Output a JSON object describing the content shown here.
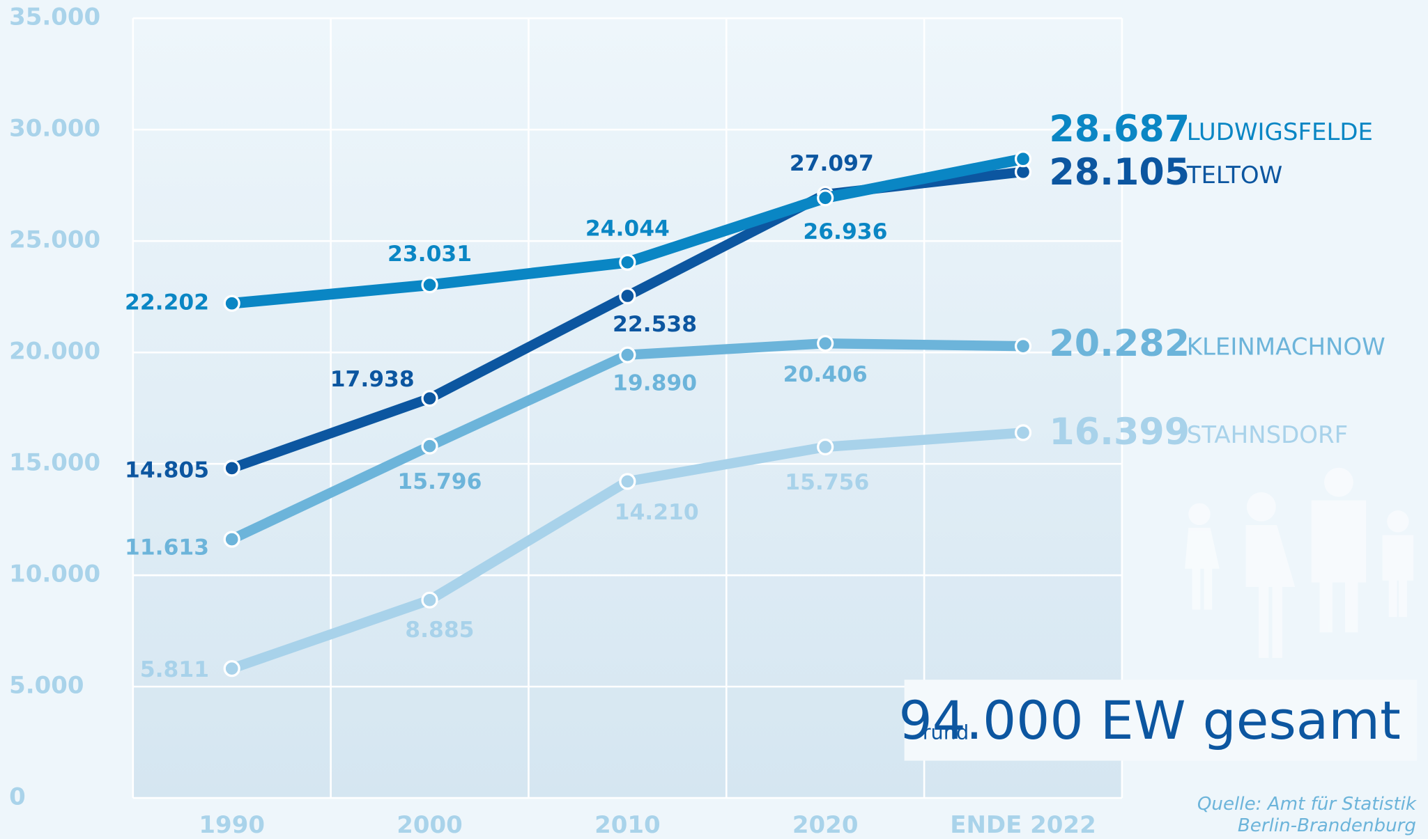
{
  "chart_data": {
    "type": "line",
    "categories": [
      "1990",
      "2000",
      "2010",
      "2020",
      "ENDE 2022"
    ],
    "ylim": [
      0,
      35000
    ],
    "yticks": [
      0,
      {
        "value": 5000,
        "label": "5.000"
      },
      {
        "value": 10000,
        "label": "10.000"
      },
      {
        "value": 15000,
        "label": "15.000"
      },
      {
        "value": 20000,
        "label": "20.000"
      },
      {
        "value": 25000,
        "label": "25.000"
      },
      {
        "value": 30000,
        "label": "30.000"
      },
      {
        "value": 35000,
        "label": "35.000"
      }
    ],
    "grid": true,
    "series": [
      {
        "name": "LUDWIGSFELDE",
        "color": "#0a86c4",
        "values": [
          22202,
          23031,
          24044,
          26936,
          28687
        ],
        "value_labels": [
          "22.202",
          "23.031",
          "24.044",
          "26.936",
          "28.687"
        ]
      },
      {
        "name": "TELTOW",
        "color": "#0c56a0",
        "values": [
          14805,
          17938,
          22538,
          27097,
          28105
        ],
        "value_labels": [
          "14.805",
          "17.938",
          "22.538",
          "27.097",
          "28.105"
        ]
      },
      {
        "name": "KLEINMACHNOW",
        "color": "#6cb4da",
        "values": [
          11613,
          15796,
          19890,
          20406,
          20282
        ],
        "value_labels": [
          "11.613",
          "15.796",
          "19.890",
          "20.406",
          "20.282"
        ]
      },
      {
        "name": "STAHNSDORF",
        "color": "#a8d2ea",
        "values": [
          5811,
          8885,
          14210,
          15756,
          16399
        ],
        "value_labels": [
          "5.811",
          "8.885",
          "14.210",
          "15.756",
          "16.399"
        ]
      }
    ],
    "total_prefix": "rund",
    "total": "94.000 EW gesamt",
    "source": [
      "Quelle: Amt für Statistik",
      "Berlin-Brandenburg"
    ]
  }
}
